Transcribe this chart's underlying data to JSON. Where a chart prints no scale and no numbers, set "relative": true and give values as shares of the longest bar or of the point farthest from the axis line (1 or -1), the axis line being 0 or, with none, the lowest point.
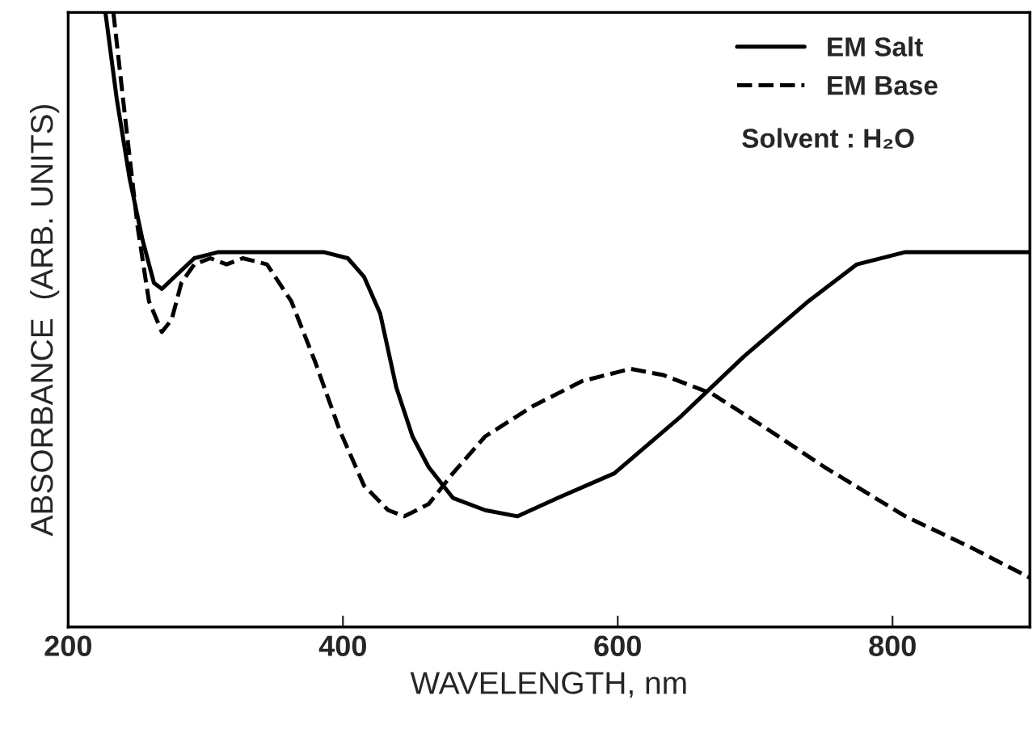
{
  "chart_data": {
    "type": "line",
    "relative": true,
    "xlabel": "WAVELENGTH, nm",
    "ylabel": "ABSORBANCE  (ARB. UNITS)",
    "xlim": [
      200,
      900
    ],
    "xticks": [
      200,
      400,
      600,
      800
    ],
    "tick_labels": "x",
    "grid": false,
    "legend": "top right",
    "marker": "none",
    "annotations": [
      "Solvent : H₂O"
    ],
    "series": [
      {
        "name": "EM Salt",
        "color": "#000000",
        "line_style": "solid",
        "x": [
          227.1,
          235.3,
          244.7,
          254.1,
          262.4,
          268.2,
          277.6,
          291.8,
          309.4,
          338.8,
          385.9,
          403.5,
          415.3,
          427.1,
          438.8,
          450.6,
          462.4,
          480.0,
          503.5,
          527.1,
          556.5,
          597.6,
          644.7,
          691.8,
          738.8,
          774.1,
          809.4,
          856.5,
          900
        ],
        "values": [
          1.0,
          0.86,
          0.73,
          0.63,
          0.56,
          0.55,
          0.57,
          0.6,
          0.61,
          0.61,
          0.61,
          0.6,
          0.57,
          0.51,
          0.39,
          0.31,
          0.26,
          0.21,
          0.19,
          0.18,
          0.21,
          0.25,
          0.34,
          0.44,
          0.53,
          0.59,
          0.61,
          0.61,
          0.61
        ]
      },
      {
        "name": "EM Base",
        "color": "#000000",
        "line_style": "dashed",
        "x": [
          232.9,
          242.4,
          250.6,
          258.8,
          268.2,
          275.3,
          282.4,
          291.8,
          303.5,
          315.3,
          327.1,
          344.7,
          362.4,
          380.0,
          397.6,
          415.3,
          432.9,
          444.7,
          462.4,
          480.0,
          503.5,
          538.8,
          574.1,
          609.4,
          632.9,
          668.2,
          703.5,
          750.6,
          809.4,
          856.5,
          900
        ],
        "values": [
          1.0,
          0.81,
          0.65,
          0.53,
          0.48,
          0.5,
          0.56,
          0.59,
          0.6,
          0.59,
          0.6,
          0.59,
          0.53,
          0.43,
          0.32,
          0.23,
          0.19,
          0.18,
          0.2,
          0.25,
          0.31,
          0.36,
          0.4,
          0.42,
          0.41,
          0.38,
          0.33,
          0.26,
          0.18,
          0.13,
          0.08
        ]
      }
    ]
  }
}
